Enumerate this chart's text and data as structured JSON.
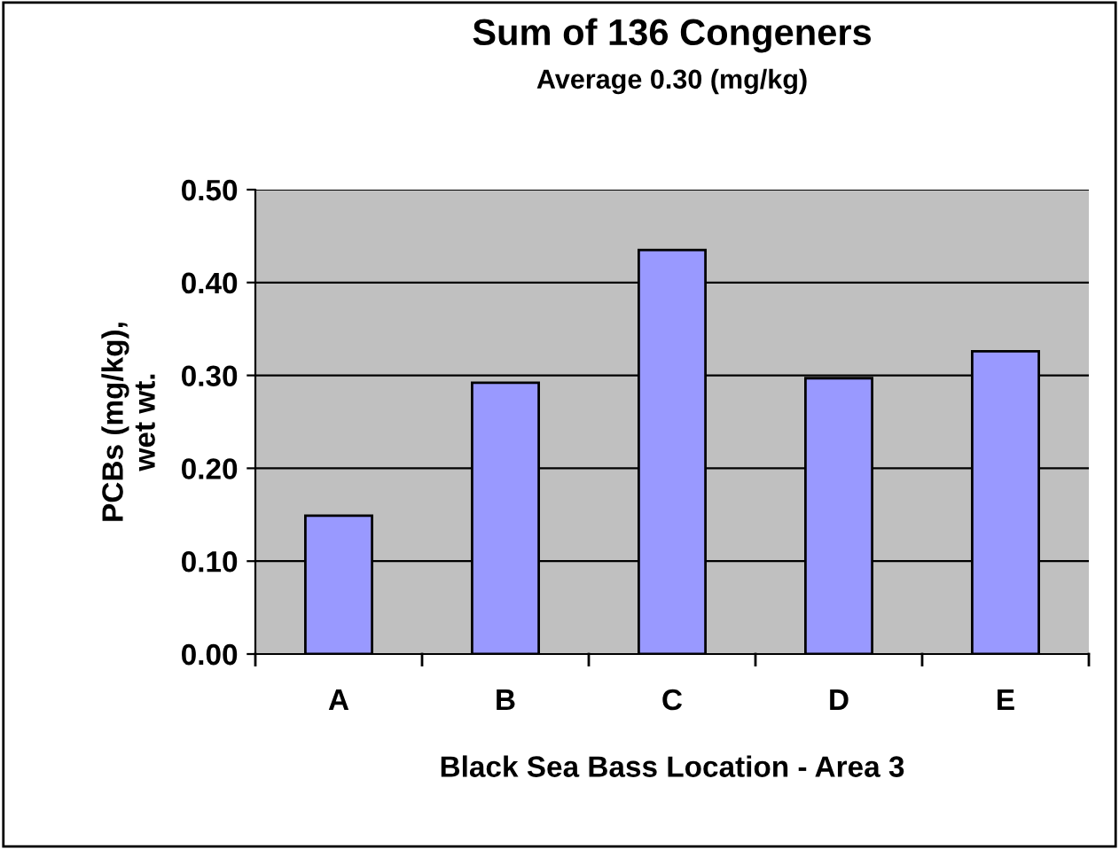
{
  "chart_data": {
    "type": "bar",
    "title": "Sum of 136 Congeners",
    "subtitle": "Average 0.30 (mg/kg)",
    "xlabel": "Black Sea Bass Location - Area 3",
    "ylabel": "PCBs (mg/kg),\nwet wt.",
    "categories": [
      "A",
      "B",
      "C",
      "D",
      "E"
    ],
    "values": [
      0.149,
      0.292,
      0.435,
      0.297,
      0.326
    ],
    "color": "#9999ff",
    "ylim": [
      0,
      0.5
    ],
    "yticks": [
      {
        "value": 0,
        "label": "0.00"
      },
      {
        "value": 0.1,
        "label": "0.10"
      },
      {
        "value": 0.2,
        "label": "0.20"
      },
      {
        "value": 0.3,
        "label": "0.30"
      },
      {
        "value": 0.4,
        "label": "0.40"
      },
      {
        "value": 0.5,
        "label": "0.50"
      }
    ],
    "grid": "y",
    "legend": false
  }
}
